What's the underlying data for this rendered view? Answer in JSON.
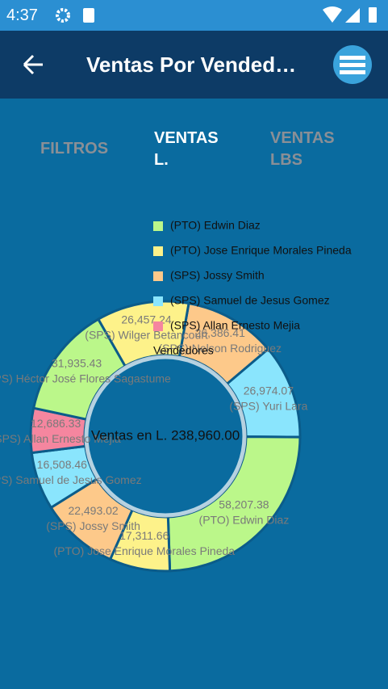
{
  "status_bar": {
    "time": "4:37"
  },
  "app_bar": {
    "title": "Ventas Por Vended…"
  },
  "tabs": [
    "FILTROS",
    "VENTAS L.",
    "VENTAS LBS"
  ],
  "chart_data": {
    "type": "donut",
    "categories": [
      "(SPS) Nelson Rodriguez",
      "(SPS) Yuri Lara",
      "(PTO) Edwin Diaz",
      "(PTO) Jose Enrique Morales Pineda",
      "(SPS) Jossy Smith",
      "(SPS) Samuel de Jesus Gomez",
      "(SPS) Allan Ernesto  Mejia",
      "(SPS) Héctor José Flores Sagastume",
      "(SPS) Wilger Betancourt"
    ],
    "values": [
      26386.41,
      26974.07,
      58207.38,
      17311.66,
      22493.02,
      16508.46,
      12686.33,
      31935.43,
      26457.24
    ],
    "value_labels": [
      "26,386.41",
      "26,974.07",
      "58,207.38",
      "17,311.66",
      "22,493.02",
      "16,508.46",
      "12,686.33",
      "31,935.43",
      "26,457.24"
    ],
    "colors": [
      "#fdc98a",
      "#8ae5fd",
      "#bbf78a",
      "#fdf28a",
      "#fdc98a",
      "#8ae5fd",
      "#f5869f",
      "#bbf78a",
      "#fdf28a"
    ],
    "center_label": "Ventas en L. 238,960.00",
    "legend": {
      "title": "Vendedores",
      "position": "top",
      "items": [
        {
          "label": "(PTO) Edwin Diaz",
          "color": "#bbf78a"
        },
        {
          "label": "(PTO) Jose Enrique Morales Pineda",
          "color": "#fdf28a"
        },
        {
          "label": "(SPS) Jossy Smith",
          "color": "#fdc98a"
        },
        {
          "label": "(SPS) Samuel de Jesus Gomez",
          "color": "#8ae5fd"
        },
        {
          "label": "(SPS) Allan Ernesto  Mejia",
          "color": "#f5869f"
        }
      ]
    }
  }
}
